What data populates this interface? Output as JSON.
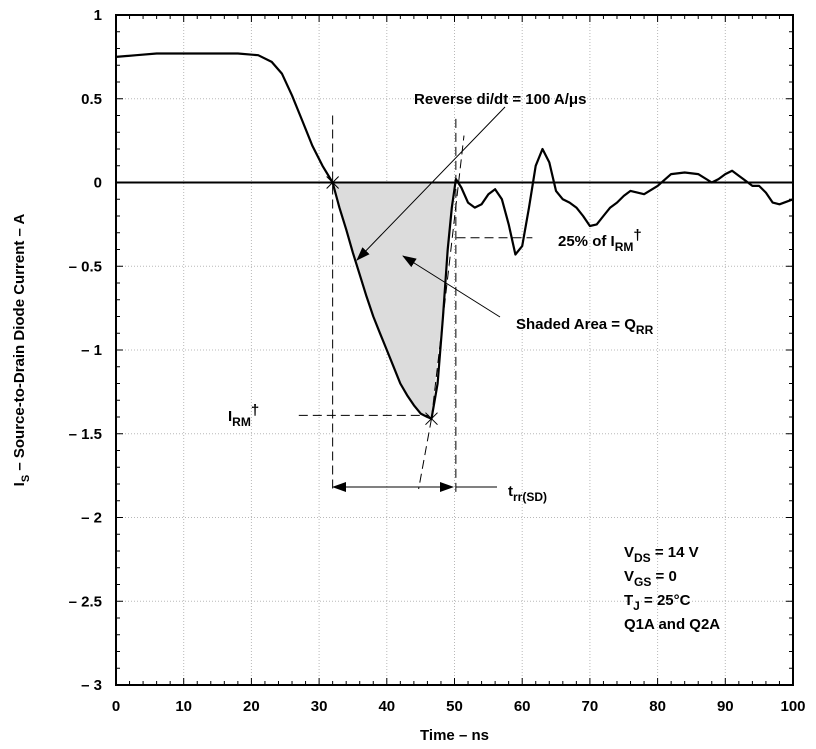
{
  "chart_data": {
    "type": "line",
    "xlabel": "Time – ns",
    "ylabel": {
      "main": "I",
      "sub": "S",
      "rest": " – Source-to-Drain Diode Current – A"
    },
    "xlim": [
      0,
      100
    ],
    "ylim": [
      -3,
      1
    ],
    "x_ticks": [
      "0",
      "10",
      "20",
      "30",
      "40",
      "50",
      "60",
      "70",
      "80",
      "90",
      "100"
    ],
    "y_ticks": [
      "1",
      "0.5",
      "0",
      "– 0.5",
      "– 1",
      "– 1.5",
      "– 2",
      "– 2.5",
      "– 3"
    ],
    "grid": true,
    "series": [
      {
        "x": [
          0,
          3,
          6,
          10,
          14,
          18,
          21,
          23,
          24.5,
          26,
          27.5,
          29,
          30.5,
          32,
          33,
          34,
          35,
          36,
          37,
          38,
          39,
          40,
          41,
          42,
          43,
          44,
          45,
          46,
          46.6,
          47.5,
          48.3,
          49,
          49.6,
          50.2,
          51,
          52,
          53,
          54,
          55,
          56,
          57,
          58,
          59,
          60,
          61,
          62,
          63,
          64,
          65,
          66,
          67,
          68,
          69,
          70,
          71,
          72,
          73,
          74,
          75,
          76,
          78,
          80,
          82,
          84,
          86,
          88,
          89,
          90,
          91,
          92,
          93,
          94,
          95,
          96,
          97,
          98,
          100
        ],
        "y": [
          0.75,
          0.76,
          0.77,
          0.77,
          0.77,
          0.77,
          0.76,
          0.72,
          0.65,
          0.52,
          0.37,
          0.22,
          0.1,
          0.0,
          -0.15,
          -0.28,
          -0.42,
          -0.55,
          -0.68,
          -0.8,
          -0.9,
          -1.0,
          -1.1,
          -1.2,
          -1.27,
          -1.33,
          -1.38,
          -1.4,
          -1.41,
          -1.2,
          -0.8,
          -0.4,
          -0.15,
          0.02,
          -0.03,
          -0.12,
          -0.15,
          -0.13,
          -0.07,
          -0.04,
          -0.1,
          -0.25,
          -0.43,
          -0.38,
          -0.15,
          0.1,
          0.2,
          0.12,
          -0.05,
          -0.1,
          -0.12,
          -0.15,
          -0.2,
          -0.26,
          -0.25,
          -0.2,
          -0.15,
          -0.12,
          -0.08,
          -0.05,
          -0.07,
          -0.02,
          0.05,
          0.06,
          0.05,
          0.0,
          0.02,
          0.05,
          0.07,
          0.04,
          0.01,
          -0.02,
          -0.02,
          -0.06,
          -0.12,
          -0.13,
          -0.1
        ]
      }
    ],
    "annotations": {
      "didt": "Reverse di/dt = 100 A/μs",
      "pct": {
        "text": "25% of I",
        "sub": "RM",
        "sup": "†"
      },
      "shaded": {
        "text": "Shaded Area = Q",
        "sub": "RR"
      },
      "irm": {
        "text": "I",
        "sub": "RM",
        "sup": "†"
      },
      "trr": {
        "text": "t",
        "sub": "rr(SD)"
      }
    },
    "conditions": [
      {
        "text": "V",
        "sub": "DS",
        "rest": " = 14 V"
      },
      {
        "text": "V",
        "sub": "GS",
        "rest": " = 0"
      },
      {
        "text": "T",
        "sub": "J",
        "rest": " = 25°C"
      },
      {
        "text": "Q1A and Q2A",
        "sub": "",
        "rest": ""
      }
    ]
  }
}
